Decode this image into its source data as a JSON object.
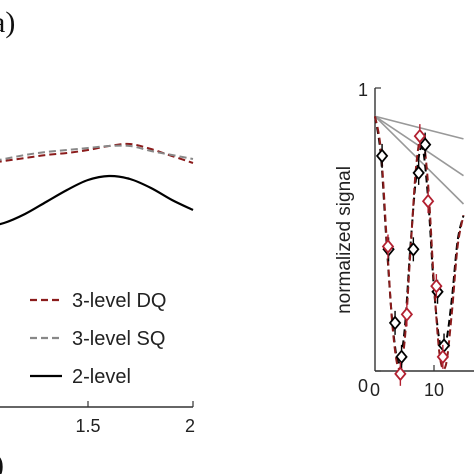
{
  "panel_label_top": "a)",
  "panel_label_bottom": ")",
  "chart_data": [
    {
      "type": "line",
      "title": "",
      "xlabel": "",
      "ylabel": "",
      "x_ticks": [
        "1.5",
        "2"
      ],
      "xlim": [
        0.9,
        2.0
      ],
      "legend_position": "bottom-right",
      "series": [
        {
          "name": "3-level DQ",
          "color": "#8b1c1c",
          "style": "dashed",
          "x": [
            0.9,
            1.0,
            1.1,
            1.2,
            1.3,
            1.4,
            1.5,
            1.6,
            1.7,
            1.8,
            1.9,
            2.0
          ],
          "y": [
            0.62,
            0.64,
            0.67,
            0.7,
            0.73,
            0.75,
            0.78,
            0.82,
            0.84,
            0.79,
            0.72,
            0.65
          ]
        },
        {
          "name": "3-level SQ",
          "color": "#888888",
          "style": "dashed",
          "x": [
            0.9,
            1.0,
            1.1,
            1.2,
            1.3,
            1.4,
            1.5,
            1.6,
            1.7,
            1.8,
            1.9,
            2.0
          ],
          "y": [
            0.63,
            0.65,
            0.69,
            0.73,
            0.76,
            0.78,
            0.8,
            0.82,
            0.82,
            0.77,
            0.73,
            0.69
          ]
        },
        {
          "name": "2-level",
          "color": "#000000",
          "style": "solid",
          "x": [
            0.9,
            1.0,
            1.1,
            1.2,
            1.3,
            1.4,
            1.5,
            1.6,
            1.7,
            1.8,
            1.9,
            2.0
          ],
          "y": [
            0.0,
            0.01,
            0.05,
            0.14,
            0.26,
            0.38,
            0.48,
            0.52,
            0.49,
            0.4,
            0.28,
            0.18
          ]
        }
      ]
    },
    {
      "type": "line",
      "title": "",
      "xlabel": "",
      "ylabel": "normalized signal",
      "ylim": [
        0,
        1
      ],
      "y_ticks": [
        "0",
        "1"
      ],
      "x_ticks": [
        "0",
        "10"
      ],
      "xlim": [
        0,
        15
      ],
      "series": [
        {
          "style": "dashed",
          "color": "#8b1c1c",
          "x": [
            0,
            1,
            2,
            3,
            4,
            5,
            6,
            7,
            8,
            9,
            10,
            11,
            12,
            13,
            14,
            15
          ],
          "y": [
            0.9,
            0.78,
            0.46,
            0.15,
            0.01,
            0.1,
            0.42,
            0.73,
            0.83,
            0.66,
            0.31,
            0.05,
            0.02,
            0.2,
            0.44,
            0.55
          ]
        },
        {
          "style": "dashed",
          "color": "#000000",
          "x": [
            0,
            1,
            2,
            3,
            4,
            5,
            6,
            7,
            8,
            9,
            10,
            11,
            12,
            13,
            14,
            15
          ],
          "y": [
            0.9,
            0.76,
            0.44,
            0.16,
            0.03,
            0.14,
            0.44,
            0.69,
            0.79,
            0.61,
            0.29,
            0.1,
            0.1,
            0.25,
            0.46,
            0.55
          ]
        },
        {
          "style": "solid",
          "color": "#999999",
          "x": [
            0,
            15
          ],
          "y": [
            0.9,
            0.82
          ]
        },
        {
          "style": "solid",
          "color": "#999999",
          "x": [
            0,
            15
          ],
          "y": [
            0.9,
            0.69
          ]
        },
        {
          "style": "solid",
          "color": "#999999",
          "x": [
            0,
            15
          ],
          "y": [
            0.9,
            0.59
          ]
        },
        {
          "style": "markers",
          "marker": "diamond",
          "color": "#000000",
          "x": [
            1.2,
            2.3,
            3.4,
            4.5,
            6.5,
            7.4,
            8.5,
            10.6,
            11.7
          ],
          "y": [
            0.76,
            0.43,
            0.17,
            0.05,
            0.43,
            0.7,
            0.8,
            0.28,
            0.09
          ]
        },
        {
          "style": "markers",
          "marker": "diamond",
          "color": "#b22030",
          "x": [
            2.2,
            4.3,
            5.4,
            7.6,
            9.0,
            10.4,
            11.5
          ],
          "y": [
            0.44,
            -0.01,
            0.2,
            0.83,
            0.6,
            0.3,
            0.05
          ]
        }
      ]
    }
  ]
}
